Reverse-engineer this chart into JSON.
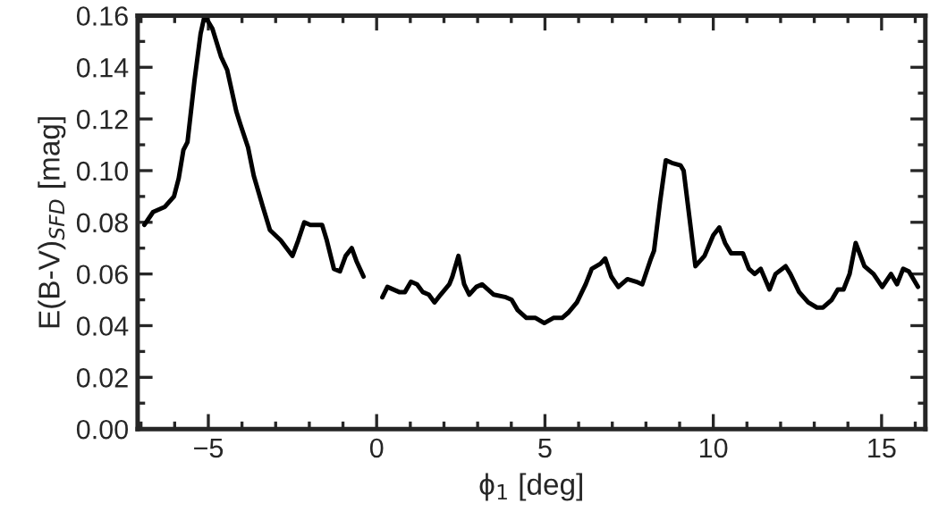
{
  "chart_data": {
    "type": "line",
    "xlabel": "ϕ$_{1}$ [deg]",
    "ylabel": "E(B-V)$_{SFD}$ [mag]",
    "xlim": [
      -7.1,
      16.3
    ],
    "xticks": [
      {
        "value": -5,
        "label": "−5"
      },
      0,
      5,
      10,
      15
    ],
    "ylim": [
      0,
      0.16
    ],
    "yticks": [
      {
        "value": 0,
        "label": "0.00"
      },
      {
        "value": 0.02,
        "label": "0.02"
      },
      {
        "value": 0.04,
        "label": "0.04"
      },
      {
        "value": 0.06,
        "label": "0.06"
      },
      {
        "value": 0.08,
        "label": "0.08"
      },
      {
        "value": 0.1,
        "label": "0.10"
      },
      {
        "value": 0.12,
        "label": "0.12"
      },
      {
        "value": 0.14,
        "label": "0.14"
      },
      {
        "value": 0.16,
        "label": "0.16"
      }
    ],
    "grid": false,
    "legend": false,
    "marker": "none",
    "line_style": "solid",
    "series": [
      {
        "color": "#000000",
        "x": [
          -6.9,
          -6.64,
          -6.29,
          -6.02,
          -5.88,
          -5.74,
          -5.62,
          -5.41,
          -5.23,
          -5.11,
          -4.88,
          -4.62,
          -4.44,
          -4.17,
          -4.05,
          -3.82,
          -3.65,
          -3.38,
          -3.17,
          -2.85,
          -2.5,
          -2.33,
          -2.15,
          -1.97,
          -1.62,
          -1.48,
          -1.27,
          -1.09,
          -0.92,
          -0.74,
          -0.6,
          -0.39,
          -0.1,
          0.17,
          0.32,
          0.67,
          0.84,
          1.02,
          1.2,
          1.37,
          1.55,
          1.72,
          1.9,
          2.16,
          2.25,
          2.43,
          2.6,
          2.75,
          2.96,
          3.13,
          3.48,
          3.84,
          4.01,
          4.19,
          4.45,
          4.72,
          4.98,
          5.25,
          5.51,
          5.69,
          5.95,
          6.21,
          6.39,
          6.65,
          6.79,
          6.97,
          7.18,
          7.45,
          7.71,
          7.89,
          8.15,
          8.24,
          8.42,
          8.59,
          8.77,
          9.03,
          9.12,
          9.3,
          9.47,
          9.74,
          10.0,
          10.18,
          10.35,
          10.53,
          10.88,
          11.06,
          11.23,
          11.41,
          11.67,
          11.85,
          12.15,
          12.29,
          12.55,
          12.82,
          13.08,
          13.26,
          13.52,
          13.7,
          13.87,
          14.05,
          14.23,
          14.49,
          14.76,
          15.02,
          15.28,
          15.46,
          15.64,
          15.81,
          16.08
        ],
        "values": [
          0.079,
          0.084,
          0.086,
          0.09,
          0.097,
          0.108,
          0.111,
          0.135,
          0.153,
          0.16,
          0.155,
          0.144,
          0.139,
          0.123,
          0.118,
          0.109,
          0.098,
          0.086,
          0.077,
          0.073,
          0.067,
          0.073,
          0.08,
          0.079,
          0.079,
          0.073,
          0.062,
          0.061,
          0.067,
          0.07,
          0.065,
          0.059,
          null,
          0.051,
          0.055,
          0.053,
          0.053,
          0.057,
          0.056,
          0.053,
          0.052,
          0.049,
          0.052,
          0.056,
          0.059,
          0.067,
          0.056,
          0.052,
          0.055,
          0.056,
          0.052,
          0.051,
          0.05,
          0.046,
          0.043,
          0.043,
          0.041,
          0.043,
          0.043,
          0.045,
          0.049,
          0.056,
          0.062,
          0.064,
          0.066,
          0.059,
          0.055,
          0.058,
          0.057,
          0.056,
          0.066,
          0.069,
          0.088,
          0.104,
          0.103,
          0.102,
          0.1,
          0.081,
          0.063,
          0.067,
          0.075,
          0.078,
          0.072,
          0.068,
          0.068,
          0.062,
          0.06,
          0.062,
          0.054,
          0.06,
          0.063,
          0.06,
          0.053,
          0.049,
          0.047,
          0.047,
          0.05,
          0.054,
          0.054,
          0.06,
          0.072,
          0.063,
          0.06,
          0.055,
          0.06,
          0.056,
          0.062,
          0.061,
          0.055
        ]
      }
    ]
  }
}
